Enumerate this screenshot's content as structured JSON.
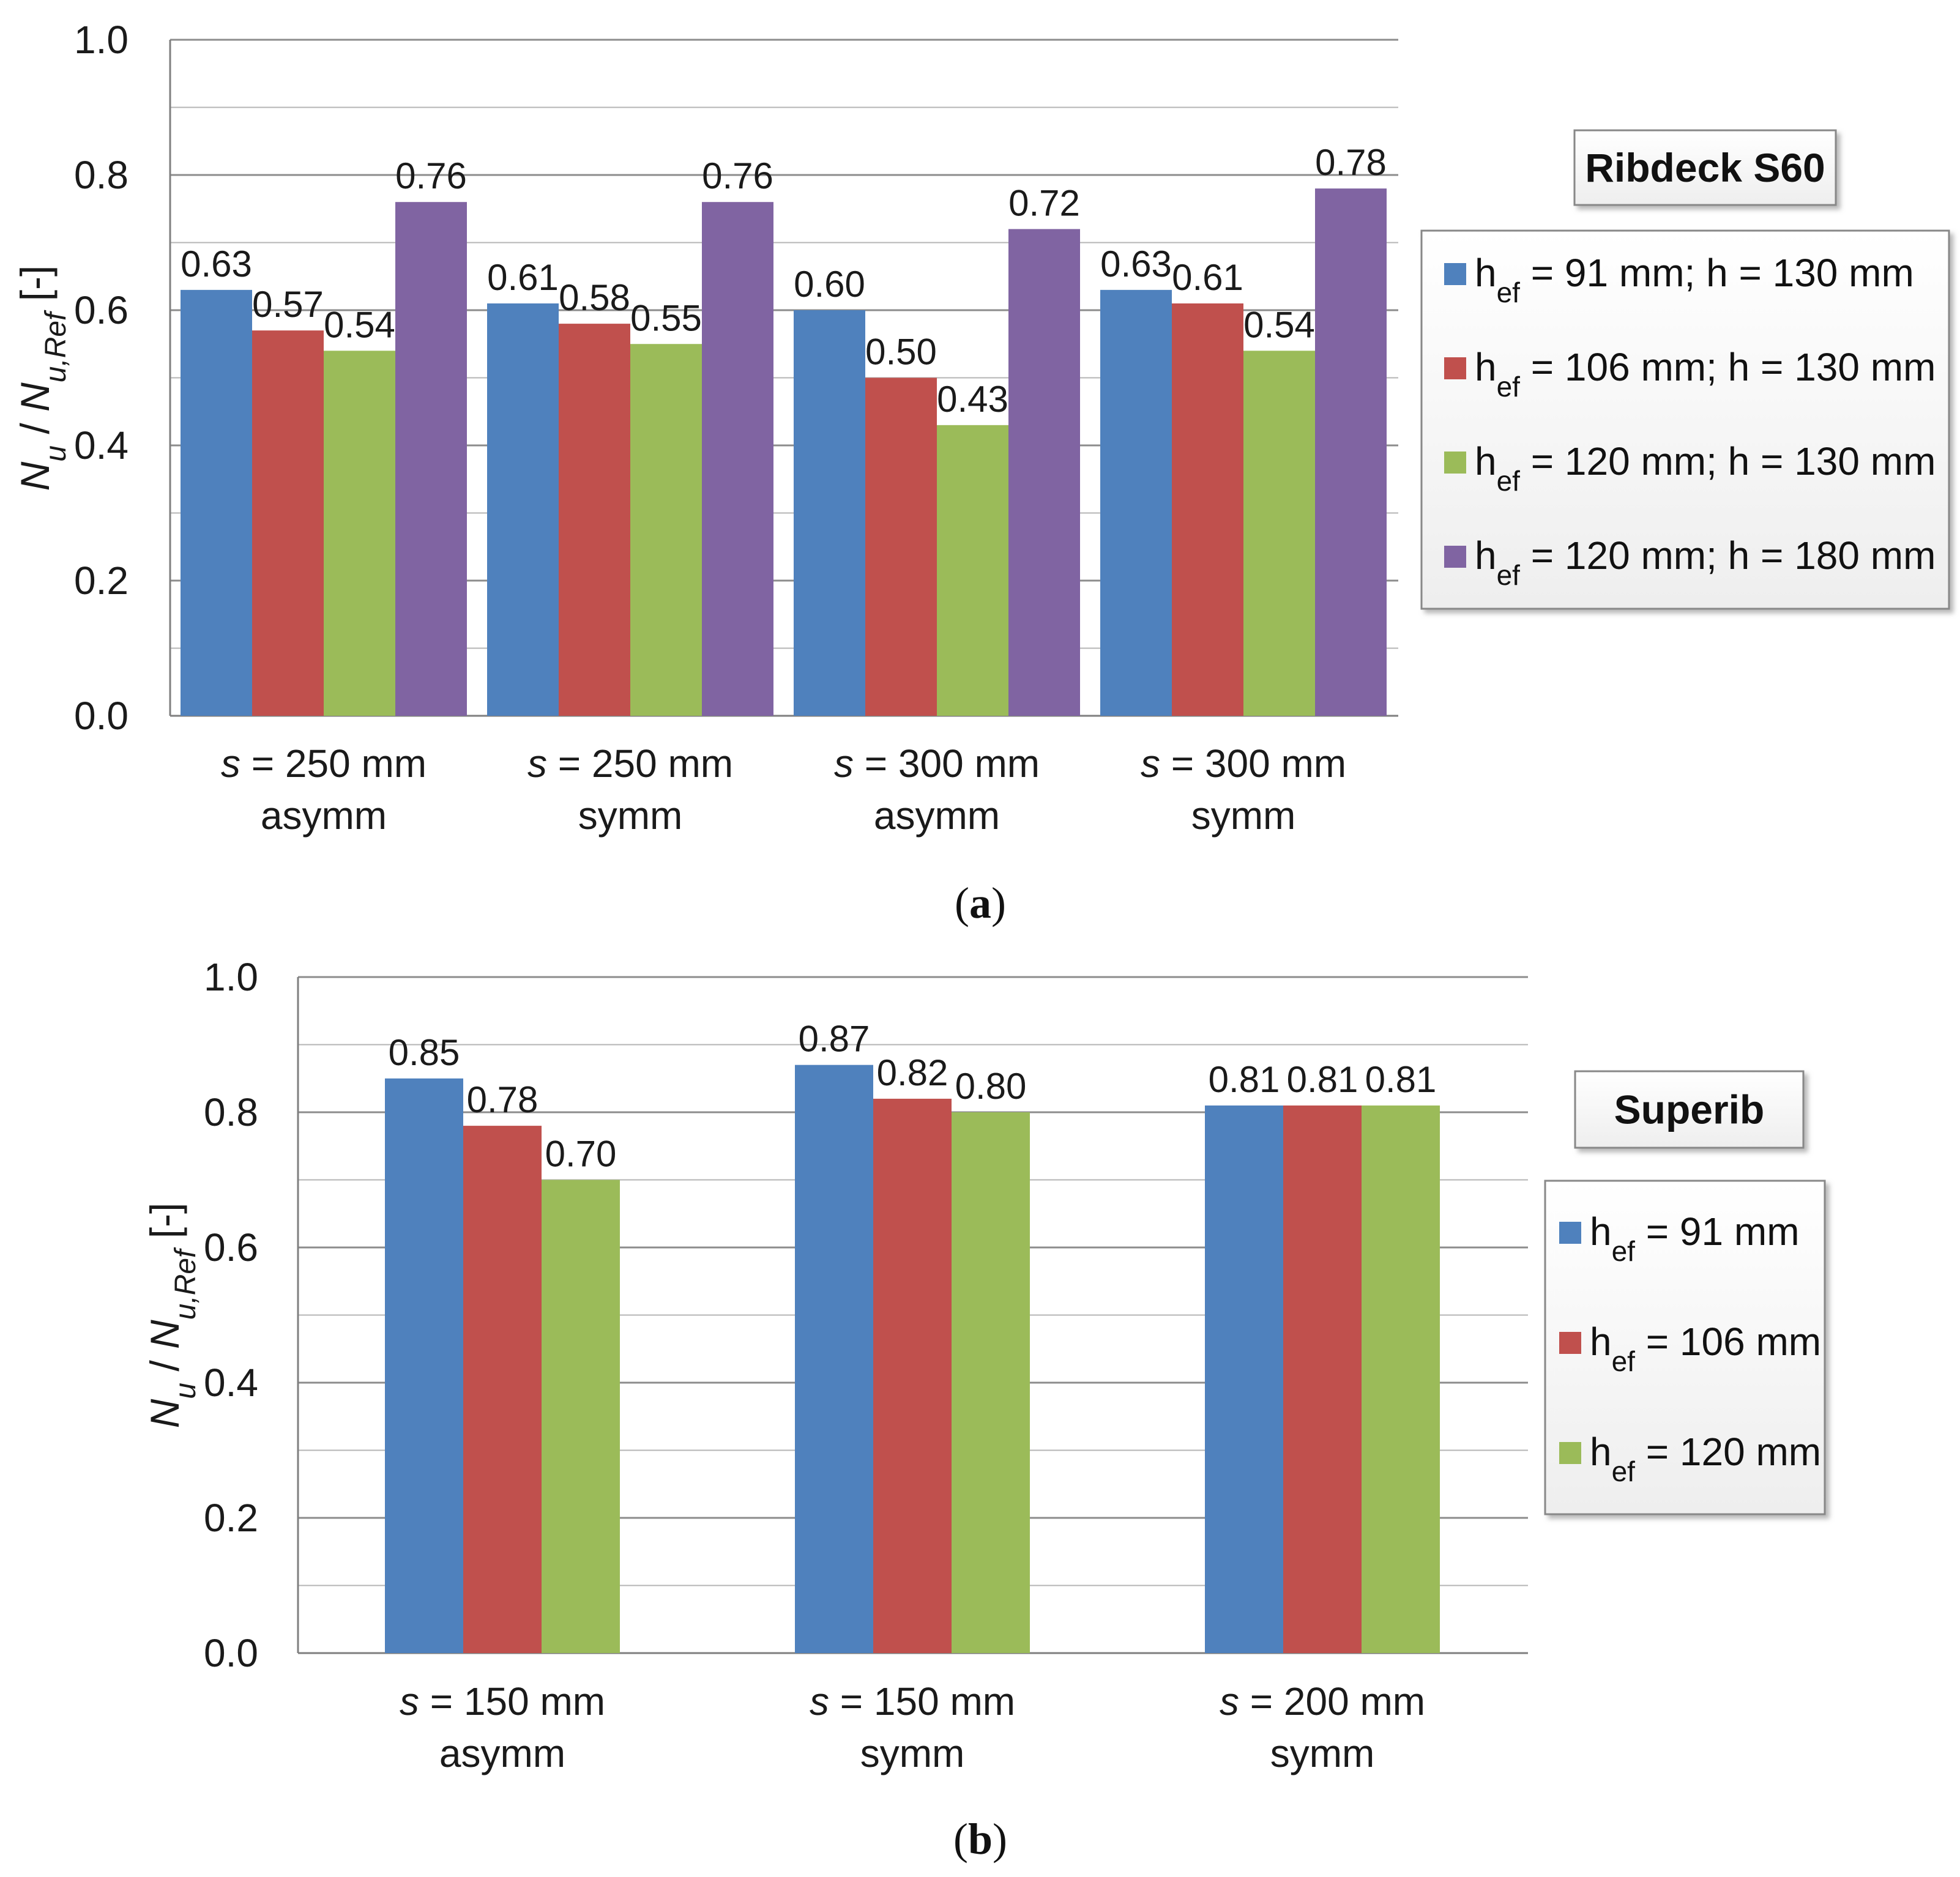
{
  "axis_ticks": [
    "0.0",
    "0.2",
    "0.4",
    "0.6",
    "0.8",
    "1.0"
  ],
  "y_axis_title": {
    "n": "N",
    "u": "u",
    "slash": " / ",
    "nref": "N",
    "uref": "u,Ref",
    "unit": " [-]"
  },
  "chart_data": [
    {
      "type": "bar",
      "panel_label": "(a)",
      "ylim": [
        0,
        1.0
      ],
      "y_ticks": [
        0.0,
        0.2,
        0.4,
        0.6,
        0.8,
        1.0
      ],
      "categories": [
        {
          "line1_var": "s",
          "line1_rest": " = 250 mm",
          "line2": "asymm"
        },
        {
          "line1_var": "s",
          "line1_rest": " = 250 mm",
          "line2": "symm"
        },
        {
          "line1_var": "s",
          "line1_rest": " = 300 mm",
          "line2": "asymm"
        },
        {
          "line1_var": "s",
          "line1_rest": " = 300 mm",
          "line2": "symm"
        }
      ],
      "series": [
        {
          "name": "hef = 91 mm; h = 130 mm",
          "label_pre": "h",
          "label_sub": "ef",
          "label_post": " = 91 mm; h = 130 mm",
          "color": "#4F81BD",
          "values": [
            0.63,
            0.61,
            0.6,
            0.63
          ],
          "labels": [
            "0.63",
            "0.61",
            "0.60",
            "0.63"
          ]
        },
        {
          "name": "hef = 106 mm; h = 130 mm",
          "label_pre": "h",
          "label_sub": "ef",
          "label_post": " = 106 mm; h = 130 mm",
          "color": "#C0504D",
          "values": [
            0.57,
            0.58,
            0.5,
            0.61
          ],
          "labels": [
            "0.57",
            "0.58",
            "0.50",
            "0.61"
          ]
        },
        {
          "name": "hef = 120 mm;  h = 130 mm",
          "label_pre": "h",
          "label_sub": "ef",
          "label_post": " = 120 mm;  h = 130 mm",
          "color": "#9BBB59",
          "values": [
            0.54,
            0.55,
            0.43,
            0.54
          ],
          "labels": [
            "0.54",
            "0.55",
            "0.43",
            "0.54"
          ]
        },
        {
          "name": "hef = 120 mm; h = 180 mm",
          "label_pre": "h",
          "label_sub": "ef",
          "label_post": " = 120 mm; h = 180 mm",
          "color": "#8064A2",
          "values": [
            0.76,
            0.76,
            0.72,
            0.78
          ],
          "labels": [
            "0.76",
            "0.76",
            "0.72",
            "0.78"
          ]
        }
      ],
      "legend_title": "Ribdeck S60"
    },
    {
      "type": "bar",
      "panel_label": "(b)",
      "ylim": [
        0,
        1.0
      ],
      "y_ticks": [
        0.0,
        0.2,
        0.4,
        0.6,
        0.8,
        1.0
      ],
      "categories": [
        {
          "line1_var": "s",
          "line1_rest": " = 150 mm",
          "line2": "asymm"
        },
        {
          "line1_var": "s",
          "line1_rest": " = 150 mm",
          "line2": "symm"
        },
        {
          "line1_var": "s",
          "line1_rest": " = 200 mm",
          "line2": "symm"
        }
      ],
      "series": [
        {
          "name": "hef = 91 mm",
          "label_pre": "h",
          "label_sub": "ef",
          "label_post": " = 91 mm",
          "color": "#4F81BD",
          "values": [
            0.85,
            0.87,
            0.81
          ],
          "labels": [
            "0.85",
            "0.87",
            "0.81"
          ]
        },
        {
          "name": "hef = 106 mm",
          "label_pre": "h",
          "label_sub": "ef",
          "label_post": " = 106 mm",
          "color": "#C0504D",
          "values": [
            0.78,
            0.82,
            0.81
          ],
          "labels": [
            "0.78",
            "0.82",
            "0.81"
          ]
        },
        {
          "name": "hef = 120 mm",
          "label_pre": "h",
          "label_sub": "ef",
          "label_post": " = 120 mm",
          "color": "#9BBB59",
          "values": [
            0.7,
            0.8,
            0.81
          ],
          "labels": [
            "0.70",
            "0.80",
            "0.81"
          ]
        }
      ],
      "legend_title": "Superib"
    }
  ]
}
